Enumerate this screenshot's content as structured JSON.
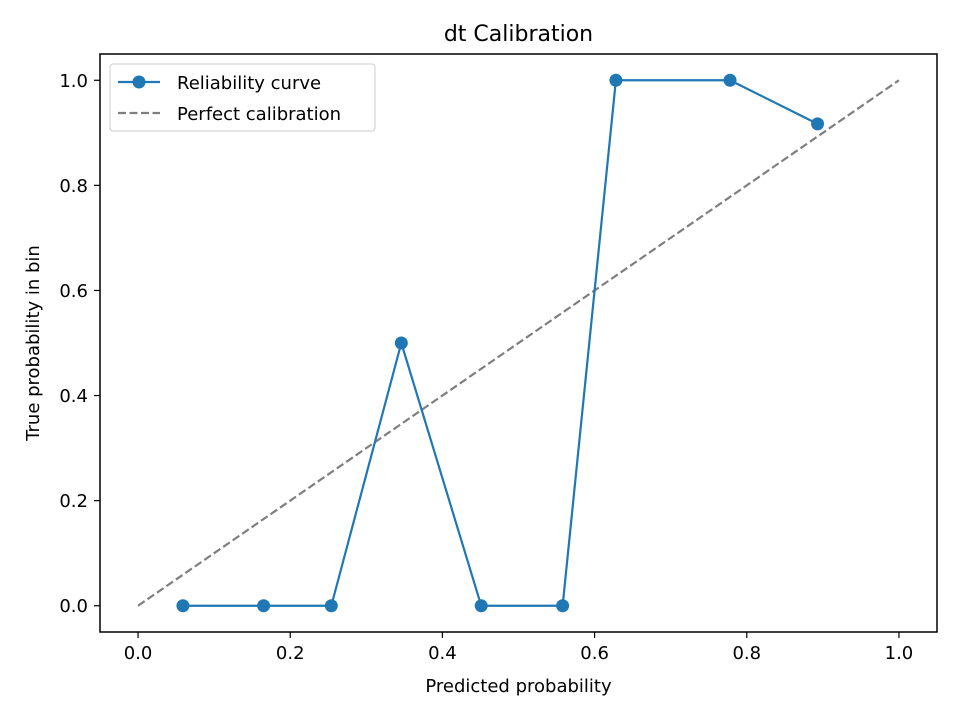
{
  "chart_data": {
    "type": "line",
    "title": "dt Calibration",
    "xlabel": "Predicted probability",
    "ylabel": "True probability in bin",
    "xlim": [
      -0.05,
      1.05
    ],
    "ylim": [
      -0.05,
      1.05
    ],
    "xticks": [
      0.0,
      0.2,
      0.4,
      0.6,
      0.8,
      1.0
    ],
    "yticks": [
      0.0,
      0.2,
      0.4,
      0.6,
      0.8,
      1.0
    ],
    "xtick_labels": [
      "0.0",
      "0.2",
      "0.4",
      "0.6",
      "0.8",
      "1.0"
    ],
    "ytick_labels": [
      "0.0",
      "0.2",
      "0.4",
      "0.6",
      "0.8",
      "1.0"
    ],
    "grid": false,
    "legend_position": "top-left",
    "series": [
      {
        "name": "Reliability curve",
        "style": "solid-markers",
        "color": "#1f77b4",
        "x": [
          0.059,
          0.165,
          0.254,
          0.346,
          0.451,
          0.558,
          0.628,
          0.778,
          0.893
        ],
        "y": [
          0.0,
          0.0,
          0.0,
          0.5,
          0.0,
          0.0,
          1.0,
          1.0,
          0.917
        ]
      },
      {
        "name": "Perfect calibration",
        "style": "dashed",
        "color": "#7f7f7f",
        "x": [
          0.0,
          1.0
        ],
        "y": [
          0.0,
          1.0
        ]
      }
    ]
  }
}
